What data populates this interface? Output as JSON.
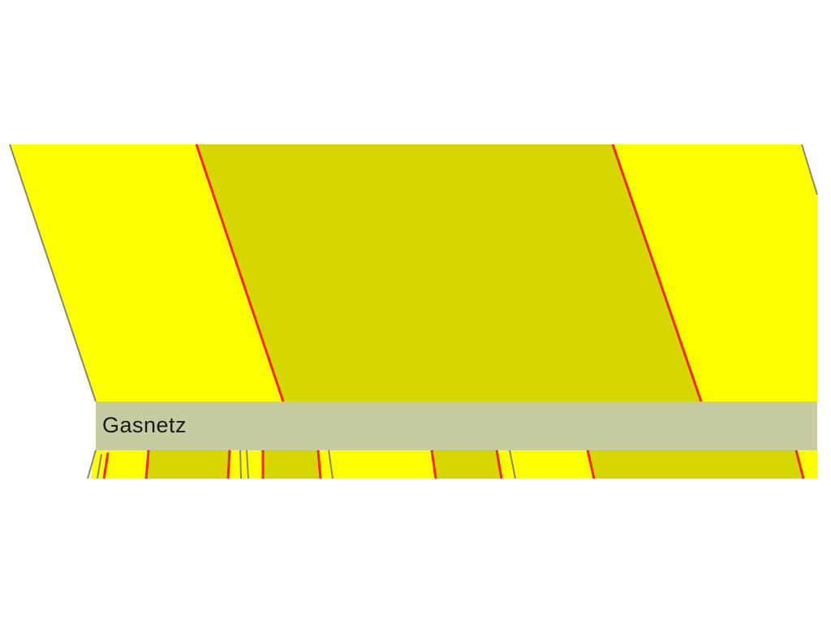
{
  "colors": {
    "background": "#ffffff",
    "parcel_light": "#ffff00",
    "parcel_dark": "#d6d600",
    "gas_line": "#ff2200",
    "boundary": "#8a8a6a",
    "layer_bar": "#c6cba0",
    "label_text": "#1a1a1a"
  },
  "layer_bar": {
    "label": "Gasnetz"
  }
}
